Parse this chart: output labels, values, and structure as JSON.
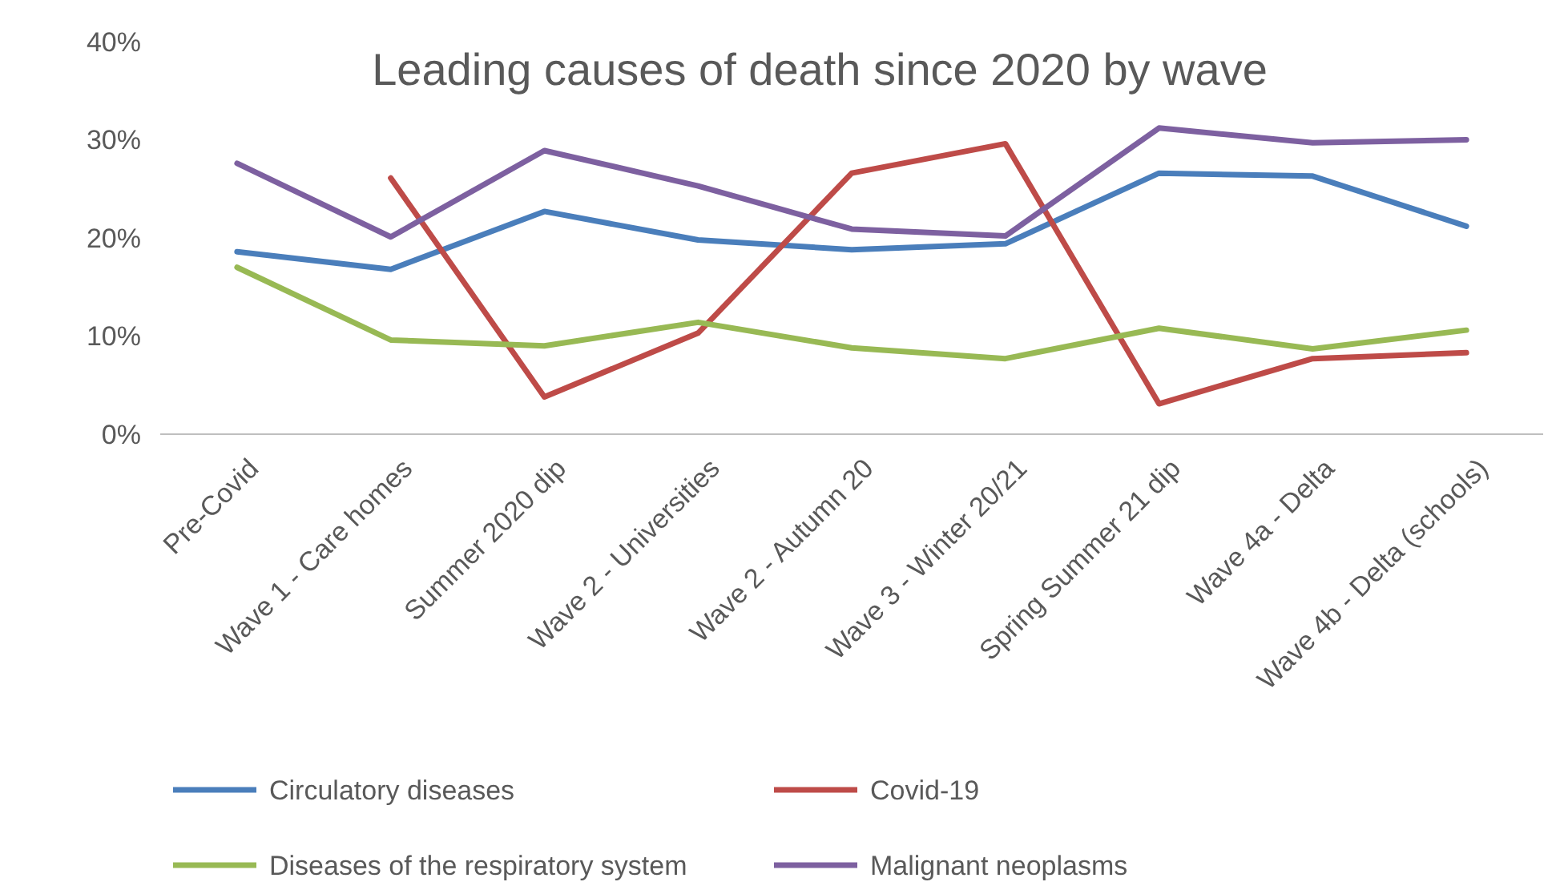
{
  "chart_data": {
    "type": "line",
    "title": "Leading causes of death since 2020 by wave",
    "categories": [
      "Pre-Covid",
      "Wave 1 - Care homes",
      "Summer 2020 dip",
      "Wave 2 - Universities",
      "Wave 2 - Autumn 20",
      "Wave 3 - Winter 20/21",
      "Spring Summer 21 dip",
      "Wave 4a - Delta",
      "Wave 4b - Delta (schools)"
    ],
    "series": [
      {
        "name": "Circulatory diseases",
        "color": "#4a7ebb",
        "values": [
          18.6,
          16.8,
          22.7,
          19.8,
          18.8,
          19.4,
          26.6,
          26.3,
          21.2
        ]
      },
      {
        "name": "Covid-19",
        "color": "#be4b48",
        "values": [
          null,
          26.1,
          3.8,
          10.3,
          26.6,
          29.6,
          3.1,
          7.7,
          8.3
        ]
      },
      {
        "name": "Diseases of the respiratory system",
        "color": "#98b954",
        "values": [
          17.0,
          9.6,
          9.0,
          11.4,
          8.8,
          7.7,
          10.8,
          8.7,
          10.6
        ]
      },
      {
        "name": "Malignant neoplasms",
        "color": "#7d60a0",
        "values": [
          27.6,
          20.1,
          28.9,
          25.3,
          20.9,
          20.2,
          31.2,
          29.7,
          30.0
        ]
      }
    ],
    "ylim": [
      0,
      40
    ],
    "yticks": [
      {
        "value": 0,
        "label": "0%"
      },
      {
        "value": 10,
        "label": "10%"
      },
      {
        "value": 20,
        "label": "20%"
      },
      {
        "value": 30,
        "label": "30%"
      },
      {
        "value": 40,
        "label": "40%"
      }
    ],
    "grid": false,
    "legend": "bottom",
    "marker": "none",
    "line_style": "solid"
  }
}
